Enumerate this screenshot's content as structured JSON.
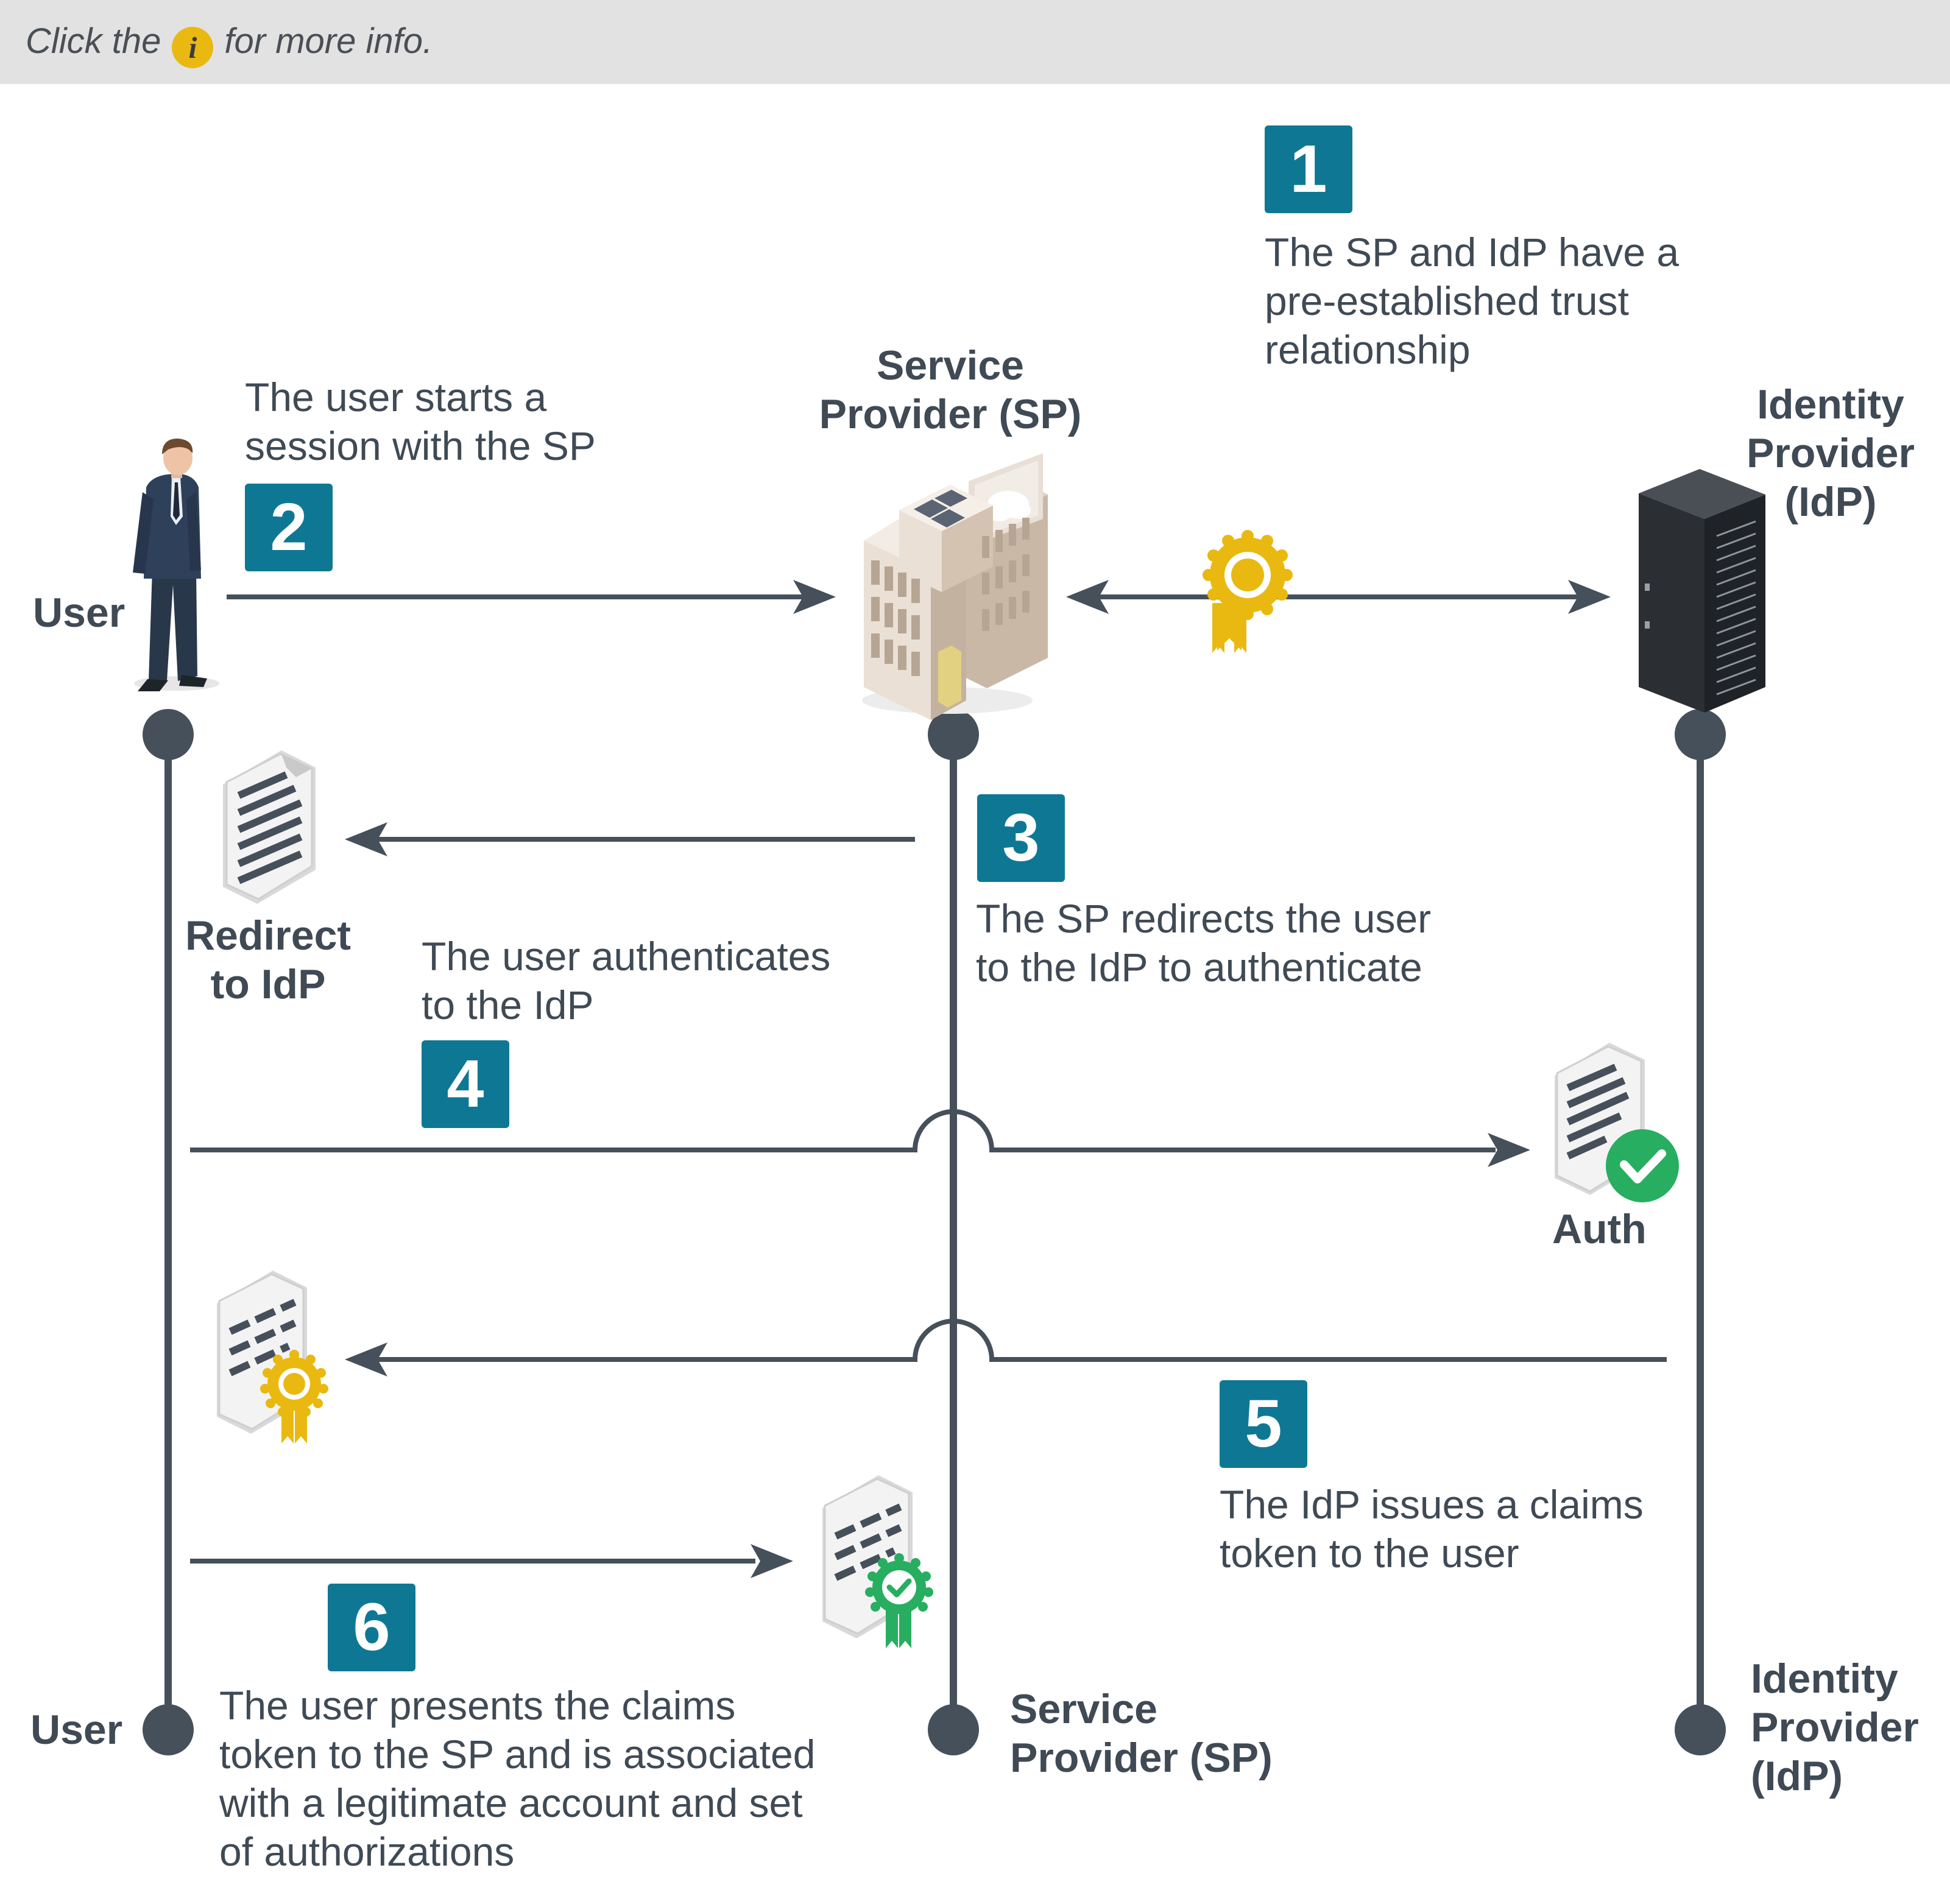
{
  "hint": {
    "before": "Click the",
    "icon": "i",
    "after": "for more info."
  },
  "actors": {
    "user": {
      "label": "User"
    },
    "sp": {
      "label_line1": "Service",
      "label_line2": "Provider (SP)"
    },
    "idp": {
      "label_line1": "Identity",
      "label_line2": "Provider",
      "label_line3": "(IdP)"
    }
  },
  "steps": [
    {
      "number": "1",
      "lines": [
        "The SP and IdP have a",
        "pre-established trust",
        "relationship"
      ]
    },
    {
      "number": "2",
      "lines": [
        "The user starts a",
        "session with the SP"
      ]
    },
    {
      "number": "3",
      "lines": [
        "The SP redirects the user",
        "to the IdP to authenticate"
      ]
    },
    {
      "number": "4",
      "lines": [
        "The user authenticates",
        "to the IdP"
      ]
    },
    {
      "number": "5",
      "lines": [
        "The IdP issues a claims",
        "token to the user"
      ]
    },
    {
      "number": "6",
      "lines": [
        "The user presents the claims",
        "token to the SP and is associated",
        "with a legitimate account and set",
        "of authorizations"
      ]
    }
  ],
  "artifacts": {
    "redirect": {
      "line1": "Redirect",
      "line2": "to IdP"
    },
    "auth": {
      "label": "Auth"
    }
  },
  "colors": {
    "badge": "#0e7894",
    "line": "#46505b",
    "seal": "#e9b911",
    "check": "#27ae60",
    "seal_green": "#27ae60"
  },
  "icons": [
    "user-figure-icon",
    "office-building-icon",
    "server-rack-icon",
    "trust-seal-icon",
    "document-icon",
    "auth-document-icon",
    "claims-token-icon",
    "verified-token-icon",
    "info-icon"
  ]
}
